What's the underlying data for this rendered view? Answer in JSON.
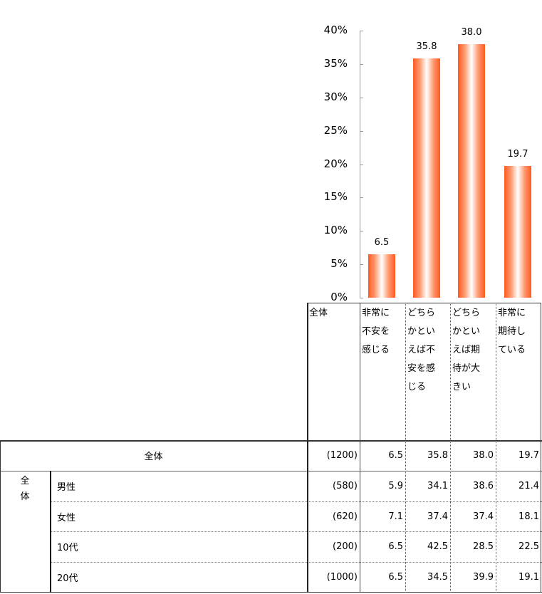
{
  "chart_data": {
    "type": "bar",
    "categories": [
      "非常に不安を感じる",
      "どちらかといえば不安を感じる",
      "どちらかといえば期待が大きい",
      "非常に期待している"
    ],
    "values": [
      6.5,
      35.8,
      38.0,
      19.7
    ],
    "value_labels": [
      "6.5",
      "35.8",
      "38.0",
      "19.7"
    ],
    "ylim": [
      0,
      40
    ],
    "yticks": [
      "0%",
      "5%",
      "10%",
      "15%",
      "20%",
      "25%",
      "30%",
      "35%",
      "40%"
    ],
    "grid": false,
    "bar_color": "#ff5a1f"
  },
  "table": {
    "header_total": "全体",
    "headers": [
      "非常に\n不安を\n感じる",
      "どちら\nかとい\nえば不\n安を感\nじる",
      "どちら\nかとい\nえば期\n待が大\nきい",
      "非常に\n期待し\nている"
    ],
    "group_label": "全\n体",
    "rows": [
      {
        "label": "全体",
        "n": "(1200)",
        "values": [
          "6.5",
          "35.8",
          "38.0",
          "19.7"
        ]
      },
      {
        "label": "男性",
        "n": "(580)",
        "values": [
          "5.9",
          "34.1",
          "38.6",
          "21.4"
        ]
      },
      {
        "label": "女性",
        "n": "(620)",
        "values": [
          "7.1",
          "37.4",
          "37.4",
          "18.1"
        ]
      },
      {
        "label": "10代",
        "n": "(200)",
        "values": [
          "6.5",
          "42.5",
          "28.5",
          "22.5"
        ]
      },
      {
        "label": "20代",
        "n": "(1000)",
        "values": [
          "6.5",
          "34.5",
          "39.9",
          "19.1"
        ]
      }
    ]
  }
}
